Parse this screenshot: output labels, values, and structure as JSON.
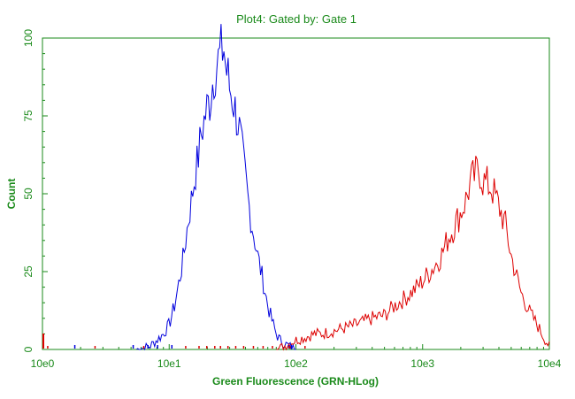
{
  "colors": {
    "axis": "#1a8a1a",
    "series_blue": "#0000dd",
    "series_red": "#dd0000"
  },
  "chart_data": {
    "type": "line",
    "title": "Plot4:  Gated by: Gate 1",
    "xlabel": "Green Fluorescence (GRN-HLog)",
    "ylabel": "Count",
    "x_scale": "log",
    "xlim": [
      1,
      10000
    ],
    "ylim": [
      0,
      100
    ],
    "x_tick_labels": [
      "10e0",
      "10e1",
      "10e2",
      "10e3",
      "10e4"
    ],
    "x_tick_values": [
      1,
      10,
      100,
      1000,
      10000
    ],
    "y_tick_labels": [
      "0",
      "25",
      "50",
      "75",
      "100"
    ],
    "y_tick_values": [
      0,
      25,
      50,
      75,
      100
    ],
    "grid": false,
    "legend": "none",
    "series": [
      {
        "color": "#0000dd",
        "x": [
          5.5,
          7,
          8,
          9,
          10,
          11,
          12,
          13,
          14,
          15,
          16,
          17,
          18,
          19,
          20,
          21,
          22,
          23,
          24,
          25,
          26,
          27,
          28,
          29,
          30,
          32,
          34,
          36,
          38,
          40,
          42,
          45,
          48,
          50,
          55,
          60,
          65,
          70,
          75,
          80,
          90,
          100
        ],
        "y": [
          0,
          1,
          3,
          5,
          8,
          14,
          22,
          30,
          40,
          48,
          56,
          62,
          70,
          74,
          78,
          80,
          86,
          90,
          92,
          94,
          96,
          97,
          90,
          88,
          84,
          80,
          75,
          70,
          62,
          55,
          48,
          40,
          34,
          30,
          22,
          14,
          9,
          5,
          3,
          2,
          1,
          0
        ]
      },
      {
        "color": "#dd0000",
        "x": [
          70,
          80,
          90,
          100,
          120,
          140,
          160,
          200,
          250,
          300,
          400,
          500,
          600,
          700,
          800,
          900,
          1000,
          1200,
          1400,
          1600,
          1800,
          2000,
          2200,
          2400,
          2600,
          2800,
          3000,
          3500,
          4000,
          4500,
          5000,
          6000,
          7000,
          8000,
          9000,
          10000
        ],
        "y": [
          0,
          1,
          2,
          3,
          4,
          5,
          5,
          6,
          7,
          8,
          10,
          11,
          14,
          16,
          18,
          20,
          22,
          26,
          30,
          36,
          40,
          44,
          48,
          54,
          56,
          58,
          54,
          52,
          46,
          40,
          30,
          18,
          12,
          8,
          4,
          1
        ]
      }
    ],
    "scatter_ticks": {
      "blue_x": [
        1.8,
        5.2,
        6.8,
        8.1,
        10.5,
        88,
        92
      ],
      "red_x": [
        1.1,
        2.6,
        6.3,
        13.5,
        17.2,
        19.8,
        22.9,
        25.4,
        29.1,
        33.5,
        38.7,
        46.2,
        55.1,
        65.3,
        88.7,
        118
      ]
    }
  }
}
